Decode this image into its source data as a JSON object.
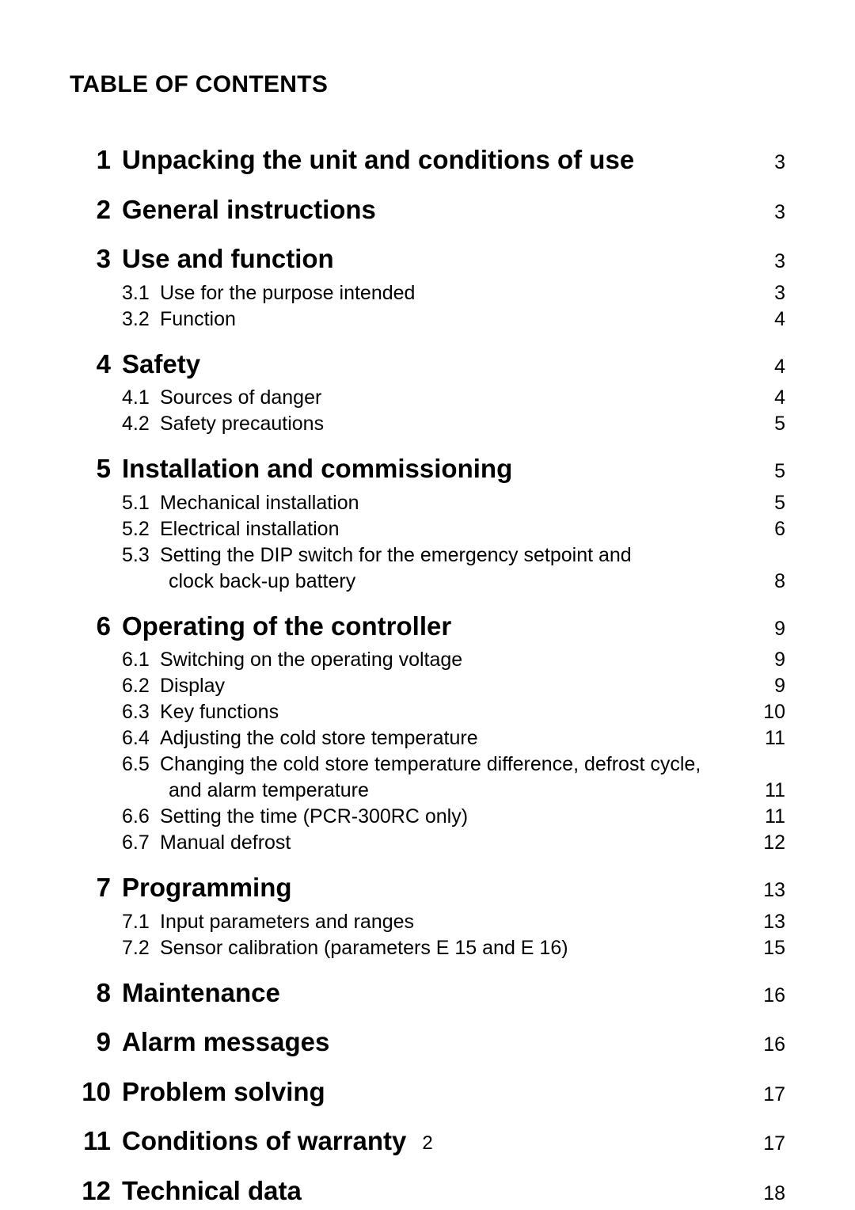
{
  "heading": "TABLE OF CONTENTS",
  "page_number": "2",
  "sections": [
    {
      "num": "1",
      "title": "Unpacking the unit and conditions of use",
      "page": "3",
      "subs": []
    },
    {
      "num": "2",
      "title": "General instructions",
      "page": "3",
      "subs": []
    },
    {
      "num": "3",
      "title": "Use and function",
      "page": "3",
      "subs": [
        {
          "num": "3.1",
          "title": "Use for the purpose intended",
          "page": "3"
        },
        {
          "num": "3.2",
          "title": "Function",
          "page": "4"
        }
      ]
    },
    {
      "num": "4",
      "title": "Safety",
      "page": "4",
      "subs": [
        {
          "num": "4.1",
          "title": "Sources of danger",
          "page": "4"
        },
        {
          "num": "4.2",
          "title": "Safety precautions",
          "page": "5"
        }
      ]
    },
    {
      "num": "5",
      "title": "Installation and commissioning",
      "page": "5",
      "subs": [
        {
          "num": "5.1",
          "title": "Mechanical installation",
          "page": "5"
        },
        {
          "num": "5.2",
          "title": "Electrical installation",
          "page": "6"
        },
        {
          "num": "5.3",
          "title": "Setting the DIP switch for the emergency setpoint and",
          "page": "",
          "cont": "clock back-up battery",
          "cont_page": "8"
        }
      ]
    },
    {
      "num": "6",
      "title": "Operating of the controller",
      "page": "9",
      "subs": [
        {
          "num": "6.1",
          "title": "Switching on the operating voltage",
          "page": "9"
        },
        {
          "num": "6.2",
          "title": "Display",
          "page": "9"
        },
        {
          "num": "6.3",
          "title": "Key functions",
          "page": "10"
        },
        {
          "num": "6.4",
          "title": "Adjusting the cold store temperature",
          "page": "11"
        },
        {
          "num": "6.5",
          "title": "Changing the cold store temperature difference, defrost cycle,",
          "page": "",
          "cont": "and alarm temperature",
          "cont_page": "11"
        },
        {
          "num": "6.6",
          "title": "Setting the time (PCR-300RC only)",
          "page": "11"
        },
        {
          "num": "6.7",
          "title": "Manual defrost",
          "page": "12"
        }
      ]
    },
    {
      "num": "7",
      "title": "Programming",
      "page": "13",
      "subs": [
        {
          "num": "7.1",
          "title": "Input parameters and ranges",
          "page": "13"
        },
        {
          "num": "7.2",
          "title": "Sensor calibration (parameters E 15 and E 16)",
          "page": "15"
        }
      ]
    },
    {
      "num": "8",
      "title": "Maintenance",
      "page": "16",
      "subs": []
    },
    {
      "num": "9",
      "title": "Alarm messages",
      "page": "16",
      "subs": []
    },
    {
      "num": "10",
      "title": "Problem solving",
      "page": "17",
      "subs": []
    },
    {
      "num": "11",
      "title": "Conditions of warranty",
      "page": "17",
      "subs": []
    },
    {
      "num": "12",
      "title": "Technical data",
      "page": "18",
      "subs": []
    }
  ]
}
